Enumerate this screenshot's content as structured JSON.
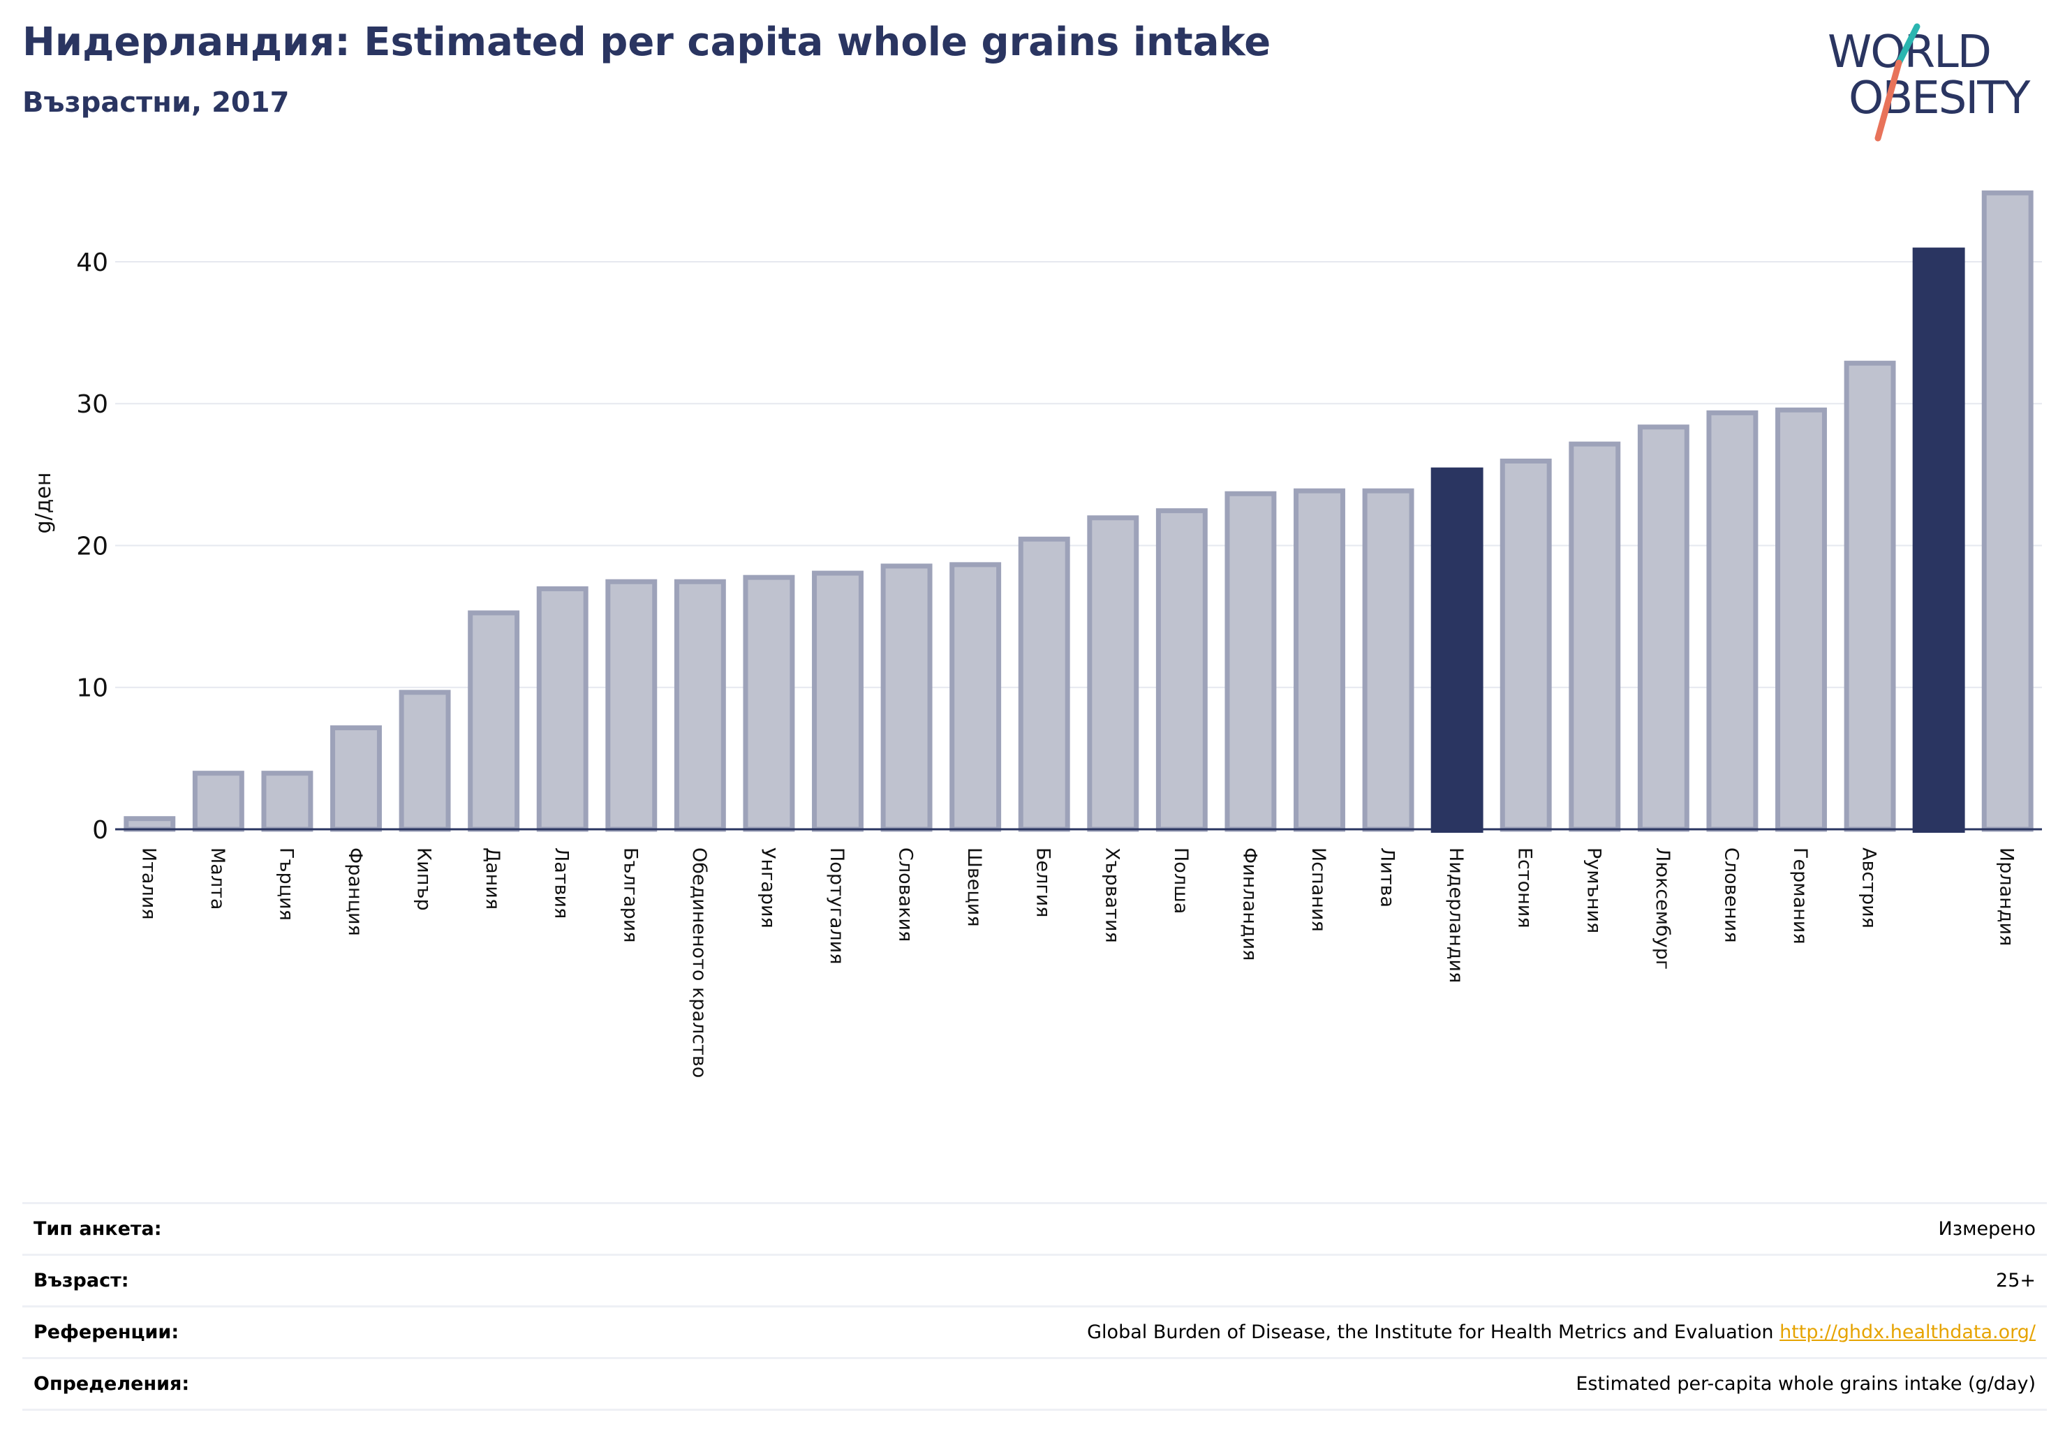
{
  "header": {
    "title": "Нидерландия: Estimated per capita whole grains intake",
    "subtitle": "Възрастни, 2017"
  },
  "logo": {
    "line1": "WORLD",
    "line2": "OBESITY",
    "colors": {
      "text": "#2a3561",
      "slash_top": "#2bb5b0",
      "slash_bottom": "#e8735a"
    }
  },
  "colors": {
    "bar_fill": "#bfc2cf",
    "bar_stroke": "#9da2b9",
    "highlight": "#2a3561",
    "grid": "#e6e8ef",
    "axis": "#2a3561"
  },
  "chart_data": {
    "type": "bar",
    "title": "",
    "xlabel": "",
    "ylabel": "g/ден",
    "ylim": [
      0,
      46
    ],
    "yticks": [
      0,
      10,
      20,
      30,
      40
    ],
    "grid": true,
    "categories": [
      "Италия",
      "Малта",
      "Гърция",
      "Франция",
      "Кипър",
      "Дания",
      "Латвия",
      "България",
      "Обединеното кралство",
      "Унгария",
      "Португалия",
      "Словакия",
      "Швеция",
      "Белгия",
      "Хърватия",
      "Полша",
      "Финландия",
      "Испания",
      "Литва",
      "Нидерландия",
      "Естония",
      "Румъния",
      "Люксембург",
      "Словения",
      "Германия",
      "Австрия",
      "",
      "Ирландия"
    ],
    "values": [
      0.9,
      4.1,
      4.1,
      7.3,
      9.8,
      15.4,
      17.1,
      17.6,
      17.6,
      17.9,
      18.2,
      18.7,
      18.8,
      20.6,
      22.1,
      22.6,
      23.8,
      24.0,
      24.0,
      25.5,
      26.1,
      27.3,
      28.5,
      29.5,
      29.7,
      33.0,
      41.0,
      45.0
    ],
    "highlight_indices": [
      19,
      26
    ]
  },
  "info": {
    "rows": [
      {
        "label": "Тип анкета:",
        "value": "Измерено"
      },
      {
        "label": "Възраст:",
        "value": "25+"
      },
      {
        "label": "Референции:",
        "value": "Global Burden of Disease, the Institute for Health Metrics and Evaluation ",
        "link": "http://ghdx.healthdata.org/"
      },
      {
        "label": "Определения:",
        "value": "Estimated per-capita whole grains intake (g/day)"
      }
    ]
  }
}
